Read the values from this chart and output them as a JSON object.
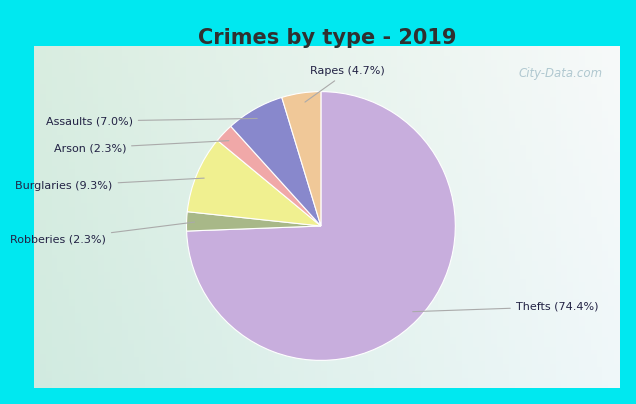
{
  "title": "Crimes by type - 2019",
  "title_fontsize": 15,
  "labels": [
    "Thefts",
    "Robberies",
    "Burglaries",
    "Arson",
    "Assaults",
    "Rapes"
  ],
  "values": [
    74.4,
    2.3,
    9.3,
    2.3,
    7.0,
    4.7
  ],
  "colors": [
    "#c8aedd",
    "#a8b888",
    "#f0f090",
    "#f0a8a8",
    "#8888cc",
    "#f0c898"
  ],
  "label_texts": [
    "Thefts (74.4%)",
    "Robberies (2.3%)",
    "Burglaries (9.3%)",
    "Arson (2.3%)",
    "Assaults (7.0%)",
    "Rapes (4.7%)"
  ],
  "background_top_color": "#00e8f0",
  "background_main_tl": "#c8e8d0",
  "background_main_br": "#e8f4f0",
  "watermark": "City-Data.com",
  "startangle": 90,
  "border_cyan": "#00e0f0",
  "title_color": "#303030",
  "label_color": "#222244",
  "arrow_color": "#aaaaaa"
}
